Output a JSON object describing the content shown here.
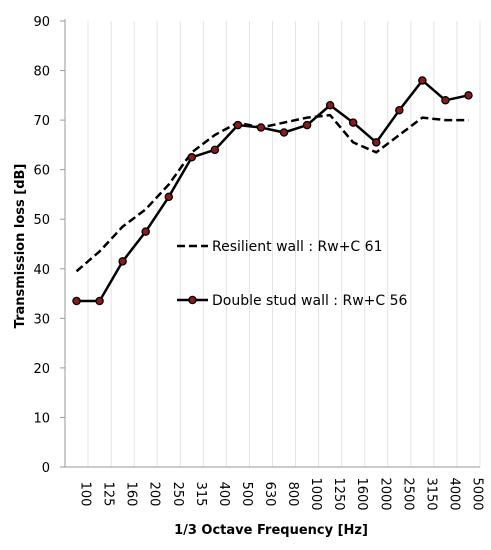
{
  "chart_data": {
    "type": "line",
    "xlabel": "1/3 Octave Frequency [Hz]",
    "ylabel": "Transmission loss [dB]",
    "ylim": [
      0,
      90
    ],
    "yticks": [
      "0",
      "10",
      "20",
      "30",
      "40",
      "50",
      "60",
      "70",
      "80",
      "90"
    ],
    "grid": "vertical",
    "legend": "inside-left",
    "categories": [
      "100",
      "125",
      "160",
      "200",
      "250",
      "315",
      "400",
      "500",
      "630",
      "800",
      "1000",
      "1250",
      "1600",
      "2000",
      "2500",
      "3150",
      "4000",
      "5000"
    ],
    "series": [
      {
        "name": "Resilient wall : Rw+C 61",
        "style": "dashed",
        "color": "#000000",
        "values": [
          39.5,
          43.5,
          48.5,
          52.0,
          57.0,
          63.5,
          67.0,
          69.5,
          68.5,
          69.5,
          70.5,
          71.0,
          65.5,
          63.5,
          67.0,
          70.5,
          70.0,
          70.0
        ]
      },
      {
        "name": "Double stud wall : Rw+C 56",
        "style": "solid",
        "color": "#000000",
        "marker_color": "#8b1a1a",
        "values": [
          33.5,
          33.5,
          41.5,
          47.5,
          54.5,
          62.5,
          64.0,
          69.0,
          68.5,
          67.5,
          69.0,
          73.0,
          69.5,
          65.5,
          72.0,
          78.0,
          74.0,
          75.0
        ]
      }
    ]
  }
}
